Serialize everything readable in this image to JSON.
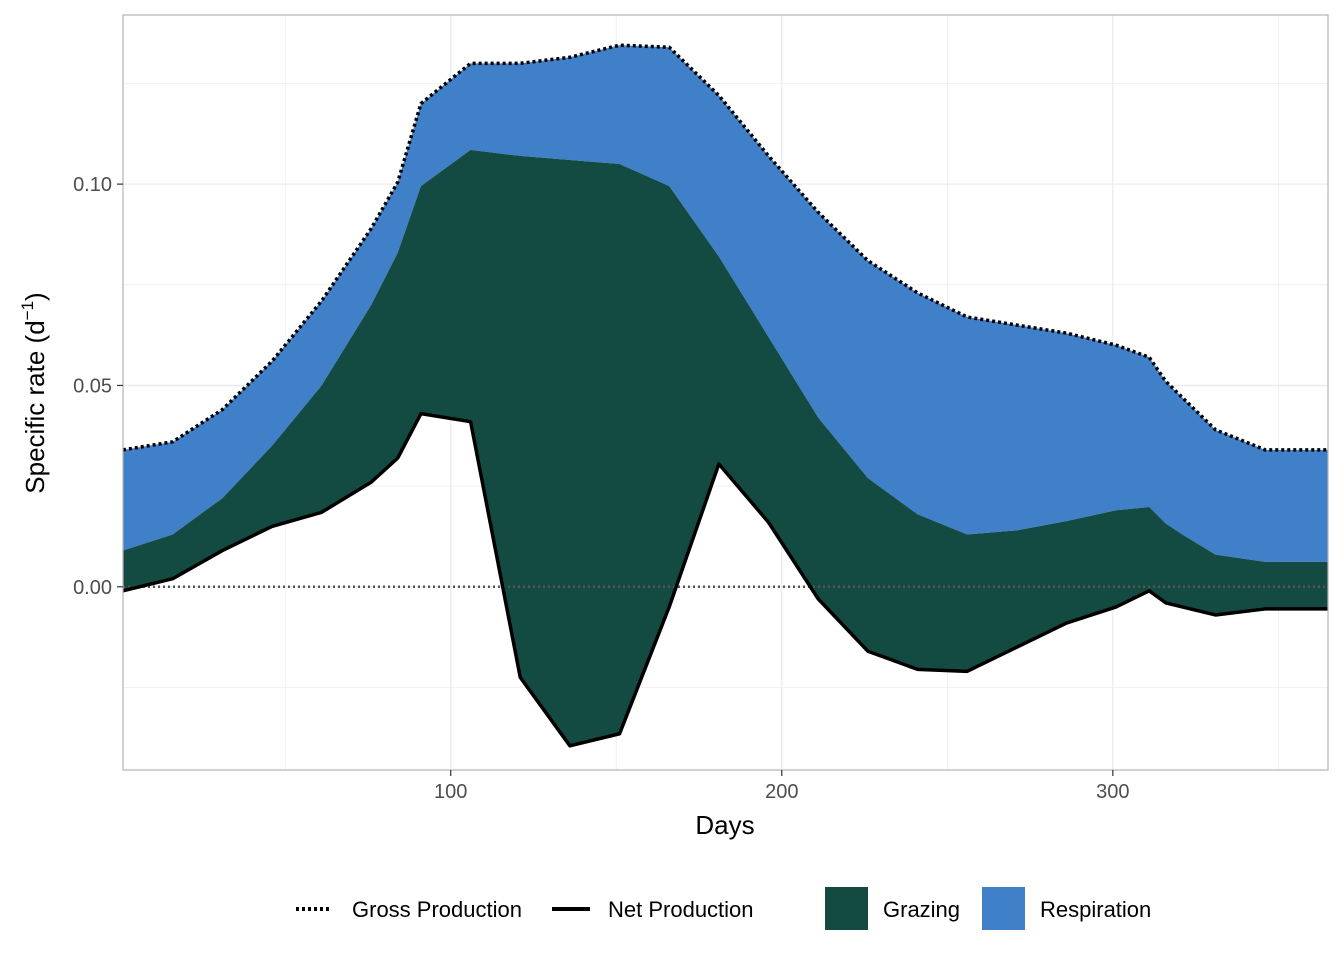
{
  "chart_data": {
    "type": "area",
    "title": "",
    "xlabel": "Days",
    "ylabel": "Specific rate (d",
    "ylabel_superscript": "−1",
    "ylabel_close": ")",
    "xlim": [
      1,
      365
    ],
    "ylim": [
      -0.0455,
      0.142
    ],
    "x_ticks": [
      100,
      200,
      300
    ],
    "x_tick_labels": [
      "100",
      "200",
      "300"
    ],
    "y_ticks": [
      0.0,
      0.05,
      0.1
    ],
    "y_tick_labels": [
      "0.00",
      "0.05",
      "0.10"
    ],
    "grid": true,
    "legend_position": "bottom",
    "zero_line": 0,
    "x": [
      1,
      16,
      31,
      46,
      61,
      76,
      84,
      91,
      106,
      121,
      136,
      151,
      166,
      181,
      196,
      211,
      226,
      241,
      256,
      271,
      286,
      301,
      311,
      316,
      321,
      331,
      346,
      365
    ],
    "series": [
      {
        "name": "Gross Production",
        "kind": "line",
        "line_style": "dotted",
        "values": [
          0.034,
          0.036,
          0.044,
          0.056,
          0.071,
          0.089,
          0.1005,
          0.12,
          0.13,
          0.13,
          0.1315,
          0.1345,
          0.134,
          0.122,
          0.107,
          0.093,
          0.081,
          0.073,
          0.067,
          0.065,
          0.063,
          0.06,
          0.057,
          0.051,
          0.047,
          0.039,
          0.034,
          0.034
        ]
      },
      {
        "name": "Net Production",
        "kind": "line",
        "line_style": "solid",
        "values": [
          -0.001,
          0.002,
          0.009,
          0.015,
          0.0185,
          0.026,
          0.032,
          0.043,
          0.041,
          -0.0225,
          -0.0395,
          -0.0365,
          -0.005,
          0.0305,
          0.016,
          -0.003,
          -0.016,
          -0.0205,
          -0.021,
          -0.015,
          -0.009,
          -0.005,
          -0.001,
          -0.004,
          -0.005,
          -0.007,
          -0.0055,
          -0.0055
        ]
      },
      {
        "name": "Grazing",
        "kind": "area",
        "color": "#134b43",
        "upper": [
          0.009,
          0.013,
          0.022,
          0.035,
          0.05,
          0.07,
          0.083,
          0.0995,
          0.1085,
          0.107,
          0.106,
          0.105,
          0.0995,
          0.082,
          0.062,
          0.042,
          0.027,
          0.018,
          0.013,
          0.014,
          0.0163,
          0.019,
          0.0198,
          0.0157,
          0.013,
          0.008,
          0.0062,
          0.0062
        ]
      },
      {
        "name": "Respiration",
        "kind": "area",
        "color": "#4080c8"
      }
    ]
  },
  "legend": {
    "gross_label": "Gross Production",
    "net_label": "Net Production",
    "grazing_label": "Grazing",
    "respiration_label": "Respiration"
  }
}
